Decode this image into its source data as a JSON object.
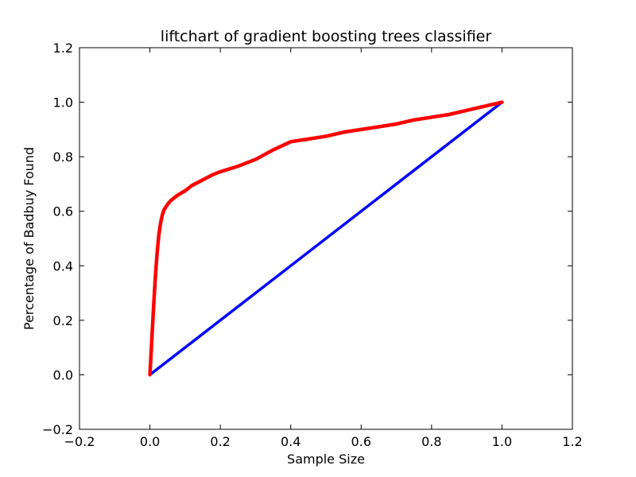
{
  "chart_data": {
    "type": "line",
    "title": "liftchart of gradient boosting trees classifier",
    "xlabel": "Sample Size",
    "ylabel": "Percentage of Badbuy Found",
    "xlim": [
      -0.2,
      1.2
    ],
    "ylim": [
      -0.2,
      1.2
    ],
    "xticks": [
      -0.2,
      0.0,
      0.2,
      0.4,
      0.6,
      0.8,
      1.0,
      1.2
    ],
    "yticks": [
      -0.2,
      0.0,
      0.2,
      0.4,
      0.6,
      0.8,
      1.0,
      1.2
    ],
    "xtick_labels": [
      "−0.2",
      "0.0",
      "0.2",
      "0.4",
      "0.6",
      "0.8",
      "1.0",
      "1.2"
    ],
    "ytick_labels": [
      "−0.2",
      "0.0",
      "0.2",
      "0.4",
      "0.6",
      "0.8",
      "1.0",
      "1.2"
    ],
    "grid": false,
    "series": [
      {
        "color": "#0000ff",
        "x": [
          0.0,
          1.0
        ],
        "y": [
          0.0,
          1.0
        ]
      },
      {
        "color": "#ff0000",
        "x": [
          0.0,
          0.005,
          0.01,
          0.015,
          0.02,
          0.025,
          0.03,
          0.035,
          0.04,
          0.05,
          0.06,
          0.07,
          0.08,
          0.1,
          0.12,
          0.15,
          0.18,
          0.2,
          0.25,
          0.3,
          0.35,
          0.4,
          0.45,
          0.5,
          0.55,
          0.6,
          0.65,
          0.7,
          0.75,
          0.8,
          0.85,
          0.9,
          0.95,
          1.0
        ],
        "y": [
          0.0,
          0.12,
          0.24,
          0.35,
          0.44,
          0.51,
          0.555,
          0.585,
          0.605,
          0.625,
          0.64,
          0.65,
          0.66,
          0.675,
          0.695,
          0.715,
          0.735,
          0.745,
          0.765,
          0.79,
          0.825,
          0.855,
          0.865,
          0.875,
          0.89,
          0.9,
          0.91,
          0.92,
          0.935,
          0.945,
          0.955,
          0.97,
          0.985,
          1.0
        ]
      }
    ]
  }
}
